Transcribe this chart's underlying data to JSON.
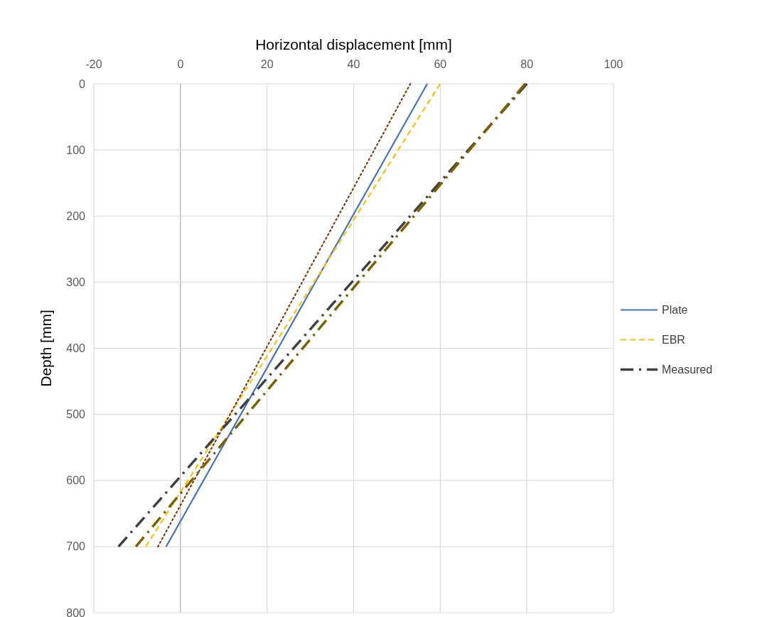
{
  "chart_data": {
    "type": "line",
    "xlabel": "Horizontal displacement [mm]",
    "ylabel": "Depth [mm]",
    "xlim": [
      -20,
      100
    ],
    "xticks": [
      -20,
      0,
      20,
      40,
      60,
      80,
      100
    ],
    "ylim": [
      800,
      0
    ],
    "yticks": [
      0,
      100,
      200,
      300,
      400,
      500,
      600,
      700,
      800
    ],
    "grid": true,
    "legend": "right",
    "series": [
      {
        "name": "Plate",
        "color": "#4472c4",
        "line_style": "solid",
        "x": [
          57,
          -3.3
        ],
        "values": [
          0,
          700
        ]
      },
      {
        "name": "EBR",
        "color": "#ffc000",
        "line_style": "dashed",
        "x": [
          60,
          -8
        ],
        "values": [
          0,
          700
        ]
      },
      {
        "color": "#843c0c",
        "line_style": "dotted",
        "x": [
          53.1,
          -5.2
        ],
        "values": [
          0,
          700
        ]
      },
      {
        "name": "Measured",
        "color": "#404040",
        "line_style": "dashdot",
        "x": [
          80,
          -14.3
        ],
        "values": [
          0,
          700
        ]
      },
      {
        "color": "#7f6000",
        "line_style": "dashdot",
        "x": [
          79.6,
          -10.3
        ],
        "values": [
          0,
          700
        ]
      }
    ]
  }
}
